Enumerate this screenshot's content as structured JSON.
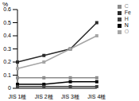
{
  "chart_data": {
    "type": "line",
    "y_label": "%",
    "categories": [
      "JIS 1種",
      "JIS 2種",
      "JIS 3種",
      "JIS 4種"
    ],
    "series": [
      {
        "name": "N",
        "color": "#000000",
        "values": [
          0.03,
          0.03,
          0.05,
          0.05
        ]
      },
      {
        "name": "C",
        "color": "#8c8c8c",
        "values": [
          0.08,
          0.08,
          0.08,
          0.08
        ]
      },
      {
        "name": "H",
        "color": "#404040",
        "values": [
          0.013,
          0.013,
          0.013,
          0.013
        ]
      },
      {
        "name": "Fe",
        "color": "#2a2a2a",
        "values": [
          0.2,
          0.25,
          0.3,
          0.5
        ]
      },
      {
        "name": "O",
        "color": "#a6a6a6",
        "values": [
          0.15,
          0.2,
          0.3,
          0.4
        ]
      }
    ],
    "ylim": [
      0,
      0.6
    ],
    "yticks": [
      0,
      0.1,
      0.2,
      0.3,
      0.4,
      0.5,
      0.6
    ],
    "grid": false,
    "legend": "upper right",
    "marker": "square",
    "line_style": "solid"
  }
}
